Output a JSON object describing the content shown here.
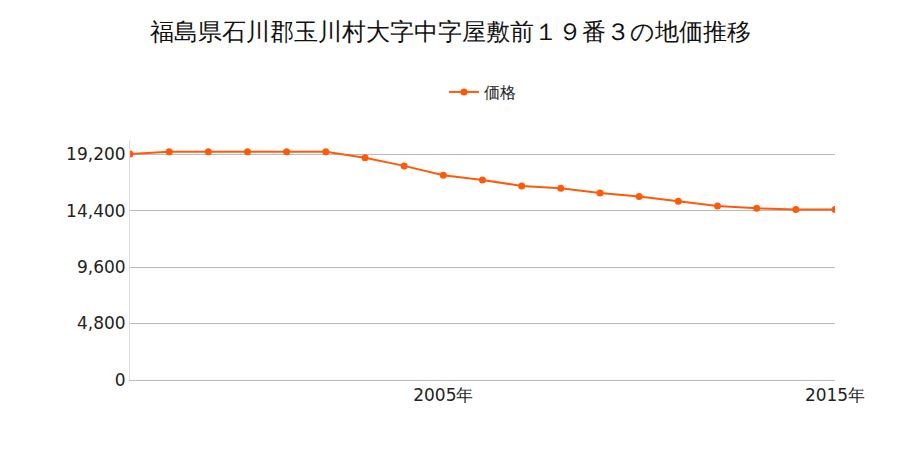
{
  "chart_data": {
    "type": "line",
    "title": "福島県石川郡玉川村大字中字屋敷前１９番３の地価推移",
    "series": [
      {
        "name": "価格",
        "color": "#ff5a0a",
        "values": [
          19200,
          19400,
          19400,
          19400,
          19400,
          19400,
          18900,
          18200,
          17400,
          17000,
          16500,
          16300,
          15900,
          15600,
          15200,
          14800,
          14600,
          14500,
          14500
        ]
      }
    ],
    "x": [
      1997,
      1998,
      1999,
      2000,
      2001,
      2002,
      2003,
      2004,
      2005,
      2006,
      2007,
      2008,
      2009,
      2010,
      2011,
      2012,
      2013,
      2014,
      2015
    ],
    "xlim": [
      1997,
      2015
    ],
    "xticks": [
      {
        "value": 2005,
        "label": "2005年"
      },
      {
        "value": 2015,
        "label": "2015年"
      }
    ],
    "ylim": [
      0,
      20400
    ],
    "yticks": [
      0,
      {
        "value": 4800,
        "label": "4,800"
      },
      {
        "value": 9600,
        "label": "9,600"
      },
      {
        "value": 14400,
        "label": "14,400"
      },
      {
        "value": 19200,
        "label": "19,200"
      }
    ],
    "grid": true,
    "legend": "top",
    "marker": "circle"
  }
}
